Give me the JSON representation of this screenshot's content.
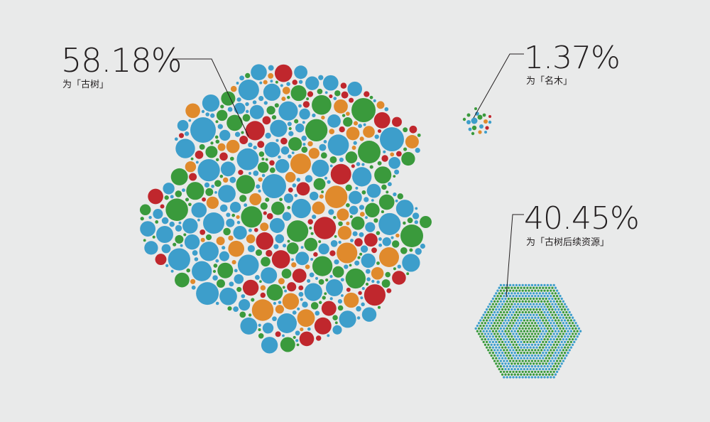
{
  "chart_data": {
    "type": "bubble-cluster",
    "title": "",
    "groups": [
      {
        "value_label": "58.18%",
        "value": 58.18,
        "caption": "为「古树」"
      },
      {
        "value_label": "1.37%",
        "value": 1.37,
        "caption": "为「名木」"
      },
      {
        "value_label": "40.45%",
        "value": 40.45,
        "caption": "为「古树后续资源」"
      }
    ],
    "colors": {
      "blue": "#3d9ecb",
      "green": "#3a9a3c",
      "orange": "#e08a2c",
      "red": "#c0272d",
      "background": "#e9eaea",
      "text": "#231f20"
    }
  }
}
